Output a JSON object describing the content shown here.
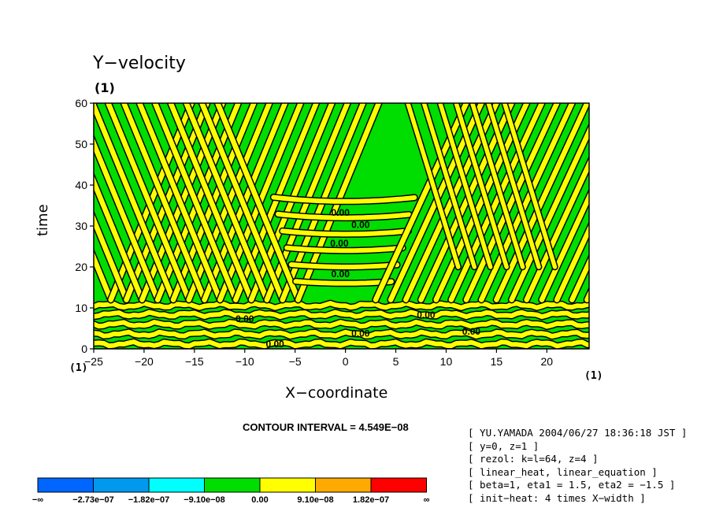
{
  "chart_data": {
    "type": "heatmap",
    "title": "Y−velocity",
    "title_unit": "(1)",
    "xlabel": "X−coordinate",
    "ylabel": "time",
    "x_unit": "(1)",
    "x_unit_right": "(1)",
    "xlim": [
      -25,
      24.2
    ],
    "ylim": [
      0,
      60
    ],
    "x_ticks": [
      "−25",
      "−20",
      "−15",
      "−10",
      "−5",
      "0",
      "5",
      "10",
      "15",
      "20"
    ],
    "x_tick_values": [
      -25,
      -20,
      -15,
      -10,
      -5,
      0,
      5,
      10,
      15,
      20
    ],
    "y_ticks": [
      "0",
      "10",
      "20",
      "30",
      "40",
      "50",
      "60"
    ],
    "y_tick_values": [
      0,
      10,
      20,
      30,
      40,
      50,
      60
    ],
    "contour_interval": "CONTOUR INTERVAL = 4.549E−08",
    "contour_labels": [
      {
        "text": "0.00",
        "x": -0.5,
        "y": 32.5
      },
      {
        "text": "0.00",
        "x": 1.5,
        "y": 29.5
      },
      {
        "text": "0.00",
        "x": -0.6,
        "y": 25.0
      },
      {
        "text": "0.00",
        "x": -0.5,
        "y": 17.5
      },
      {
        "text": "0.00",
        "x": 8.0,
        "y": 7.5
      },
      {
        "text": "0.00",
        "x": 1.5,
        "y": 3.0
      },
      {
        "text": "0.00",
        "x": 12.5,
        "y": 3.5
      },
      {
        "text": "0.00",
        "x": -10.0,
        "y": 6.5
      },
      {
        "text": "0.00",
        "x": -7.0,
        "y": 0.4
      }
    ],
    "colorbar": {
      "colors": [
        "#0066ff",
        "#0099ee",
        "#00ffff",
        "#00dd00",
        "#ffff00",
        "#ffaa00",
        "#ff0000"
      ],
      "labels": [
        "−∞",
        "−2.73e−07",
        "−1.82e−07",
        "−9.10e−08",
        "0.00",
        "9.10e−08",
        "1.82e−07",
        "∞"
      ]
    }
  },
  "info_lines": [
    "[ YU.YAMADA 2004/06/27 18:36:18 JST ]",
    "[ y=0, z=1 ]",
    "[ rezol: k=l=64, z=4 ]",
    "[ linear_heat, linear_equation ]",
    "[ beta=1, eta1 = 1.5, eta2 = −1.5 ]",
    "[ init−heat: 4 times X−width ]"
  ],
  "colors": {
    "positive": "#ffff00",
    "negative": "#00dd00",
    "contour": "#000000"
  }
}
